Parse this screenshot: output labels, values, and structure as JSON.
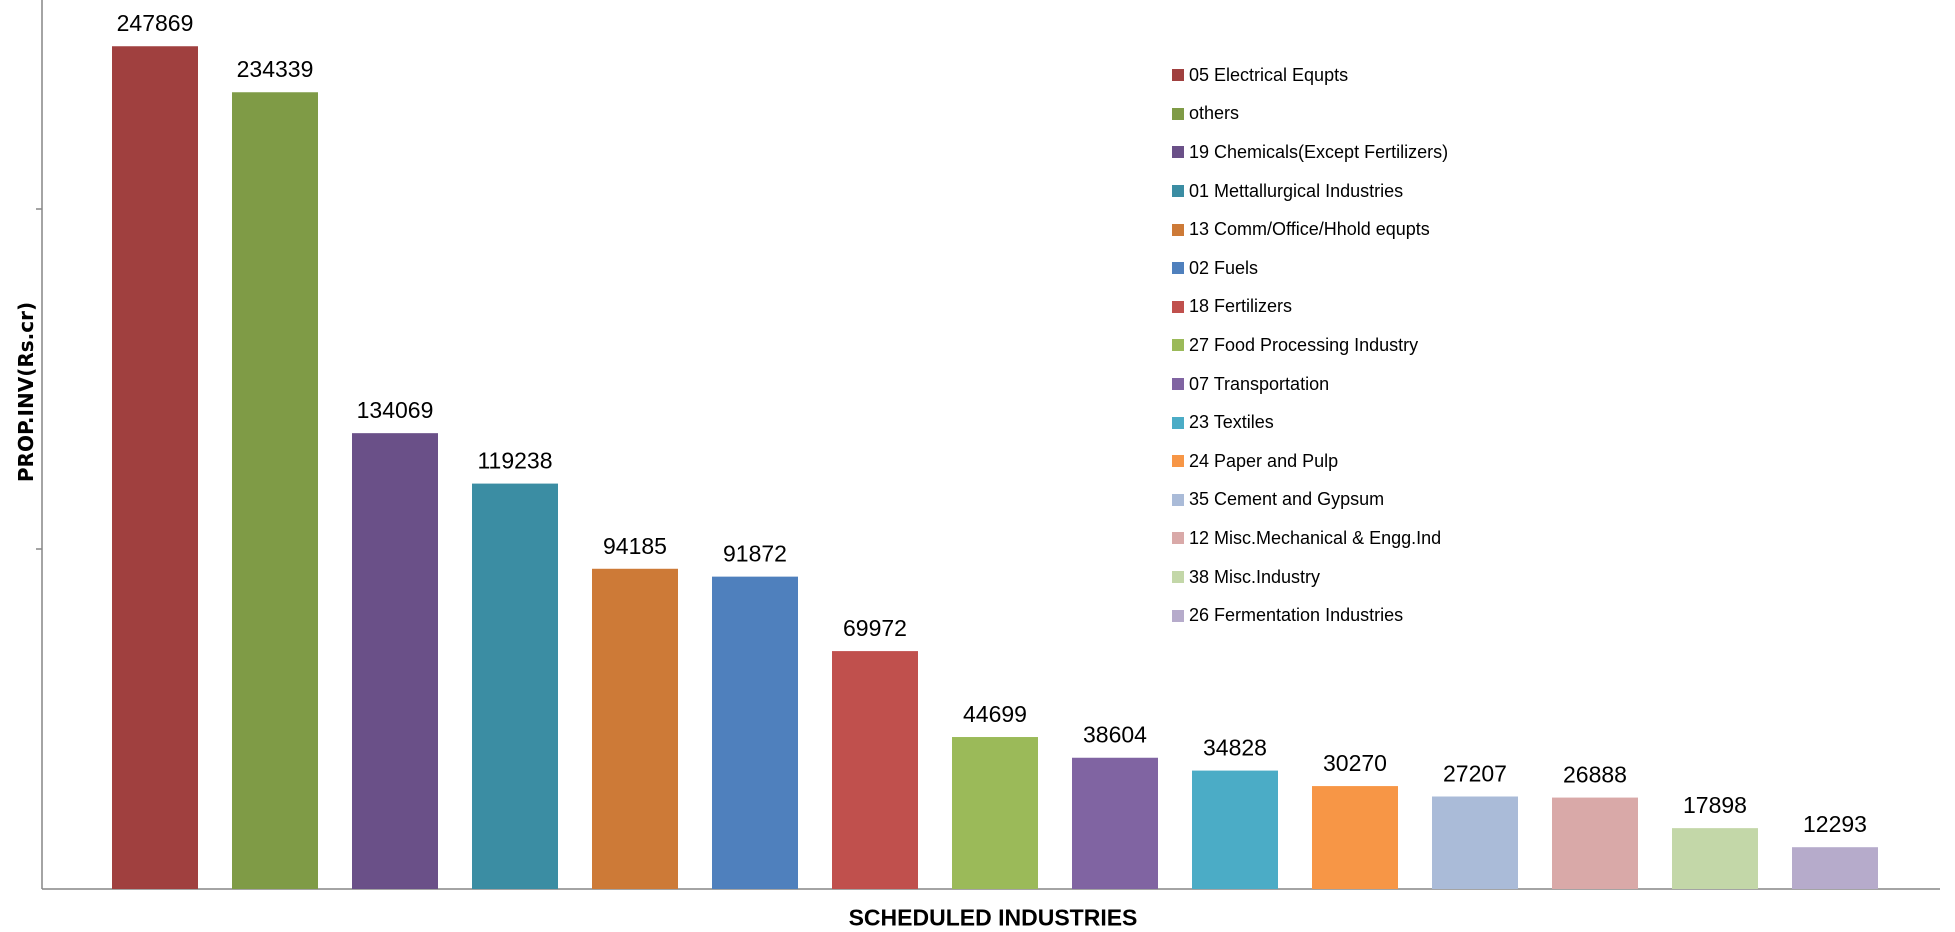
{
  "chart_data": {
    "type": "bar",
    "title": "",
    "xlabel": "SCHEDULED INDUSTRIES",
    "ylabel": "PROP.INV(Rs.cr)",
    "ylim": [
      0,
      250000
    ],
    "categories": [
      "05 Electrical Equpts",
      "others",
      "19 Chemicals(Except Fertilizers)",
      "01 Mettallurgical Industries",
      "13 Comm/Office/Hhold equpts",
      "02 Fuels",
      "18 Fertilizers",
      "27 Food Processing Industry",
      "07 Transportation",
      "23 Textiles",
      "24 Paper and Pulp",
      "35 Cement and Gypsum",
      "12 Misc.Mechanical & Engg.Ind",
      "38 Misc.Industry",
      "26 Fermentation Industries"
    ],
    "values": [
      247869,
      234339,
      134069,
      119238,
      94185,
      91872,
      69972,
      44699,
      38604,
      34828,
      30270,
      27207,
      26888,
      17898,
      12293
    ],
    "colors": [
      "#A0403F",
      "#7F9B46",
      "#6A5088",
      "#3B8DA3",
      "#CD7A37",
      "#4F80BD",
      "#C0504D",
      "#9BBA59",
      "#8064A2",
      "#4BACC6",
      "#F79646",
      "#AABBD8",
      "#D9A9A8",
      "#C3D7A8",
      "#B6ABCB"
    ],
    "legend_position": "top-right",
    "grid": false
  }
}
